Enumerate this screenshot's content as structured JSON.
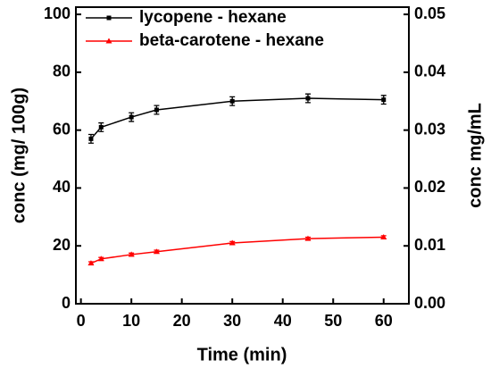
{
  "chart_data": {
    "type": "line",
    "x_label": "Time (min)",
    "y_label": "conc (mg/ 100g)",
    "y2_label": "conc mg/mL",
    "x": [
      2,
      4,
      10,
      15,
      30,
      45,
      60
    ],
    "series": [
      {
        "name": "lycopene - hexane",
        "color": "#000000",
        "marker": "square",
        "values": [
          57,
          61,
          64.5,
          67,
          70,
          71,
          70.5
        ],
        "errors": [
          1.5,
          1.5,
          1.5,
          1.5,
          1.5,
          1.5,
          1.5
        ]
      },
      {
        "name": "beta-carotene - hexane",
        "color": "#ff0000",
        "marker": "triangle",
        "values": [
          14,
          15.5,
          17,
          18,
          21,
          22.5,
          23
        ],
        "errors": [
          0.5,
          0.5,
          0.5,
          0.5,
          0.5,
          0.5,
          0.5
        ]
      }
    ],
    "xlim": [
      -1,
      65
    ],
    "xticks": [
      0,
      10,
      20,
      30,
      40,
      50,
      60
    ],
    "ylim": [
      0,
      102.5
    ],
    "yticks": [
      0,
      20,
      40,
      60,
      80,
      100
    ],
    "y2lim": [
      0,
      0.05125
    ],
    "y2ticks": [
      {
        "value": 0,
        "label": "0.00"
      },
      0.01,
      0.02,
      0.03,
      0.04,
      0.05
    ],
    "legend": "upper left"
  }
}
